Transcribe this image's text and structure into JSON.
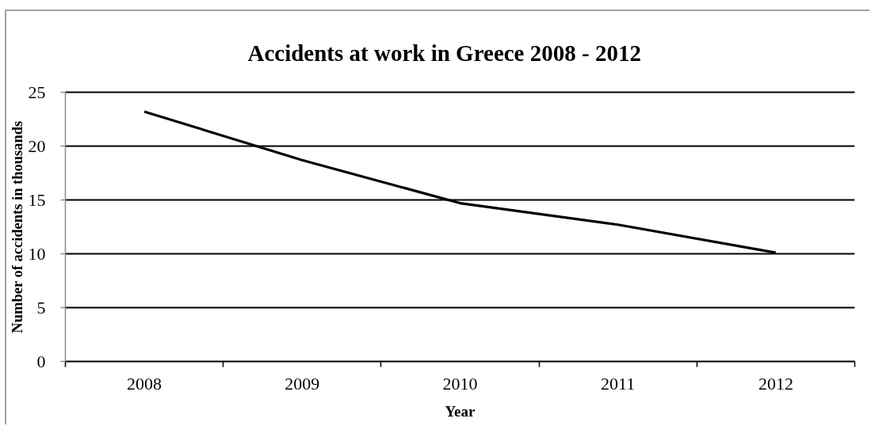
{
  "chart_data": {
    "type": "line",
    "title": "Accidents at work in Greece 2008 - 2012",
    "xlabel": "Year",
    "ylabel": "Number of accidents in thousands",
    "categories": [
      "2008",
      "2009",
      "2010",
      "2011",
      "2012"
    ],
    "series": [
      {
        "color": "#000000",
        "values": [
          23.2,
          18.7,
          14.7,
          12.7,
          10.1
        ]
      }
    ],
    "ylim": [
      0,
      25
    ],
    "yticks": [
      0,
      5,
      10,
      15,
      20,
      25
    ],
    "grid": "y",
    "marker": "none",
    "line_style": "solid"
  }
}
